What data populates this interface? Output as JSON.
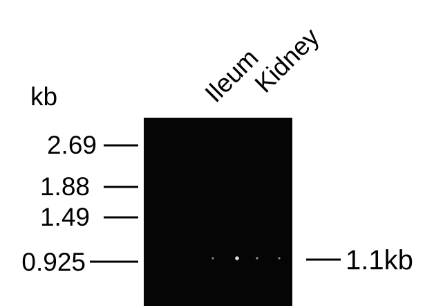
{
  "unit_label": "kb",
  "lanes": [
    "Ileum",
    "Kidney"
  ],
  "markers": [
    "2.69",
    "1.88",
    "1.49",
    "0.925"
  ],
  "band_annotation": "1.1kb"
}
